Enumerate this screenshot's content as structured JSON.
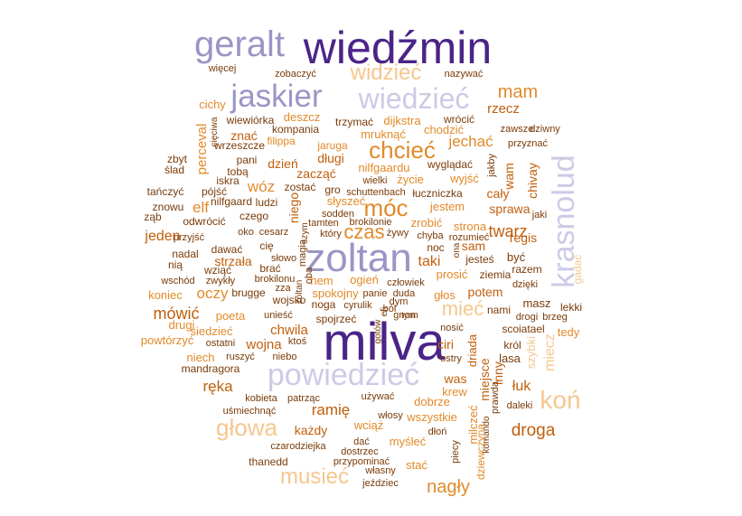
{
  "palette": {
    "dark_purple": "#4b2487",
    "mid_purple": "#9b95c6",
    "light_purple": "#cdcae6",
    "dark_orange": "#c15f0c",
    "orange": "#e28a2a",
    "light_orange": "#f5c78f",
    "brown": "#7a3b08"
  },
  "words": [
    {
      "text": "wiedźmin",
      "color": "dark_purple"
    },
    {
      "text": "milva",
      "color": "dark_purple"
    },
    {
      "text": "zoltan",
      "color": "mid_purple"
    },
    {
      "text": "geralt",
      "color": "mid_purple"
    },
    {
      "text": "jaskier",
      "color": "mid_purple"
    },
    {
      "text": "krasnolud",
      "color": "light_purple"
    },
    {
      "text": "powiedzieć",
      "color": "light_purple"
    },
    {
      "text": "wiedzieć",
      "color": "light_purple"
    },
    {
      "text": "koń",
      "color": "light_orange"
    },
    {
      "text": "widzieć",
      "color": "light_orange"
    },
    {
      "text": "głowa",
      "color": "light_orange"
    },
    {
      "text": "musieć",
      "color": "light_orange"
    },
    {
      "text": "mieć",
      "color": "light_orange"
    },
    {
      "text": "móc",
      "color": "orange"
    },
    {
      "text": "chcieć",
      "color": "orange"
    },
    {
      "text": "czas",
      "color": "orange"
    },
    {
      "text": "mam",
      "color": "orange"
    },
    {
      "text": "nagły",
      "color": "orange"
    },
    {
      "text": "droga",
      "color": "dark_orange"
    },
    {
      "text": "ręka",
      "color": "dark_orange"
    },
    {
      "text": "ramię",
      "color": "dark_orange"
    },
    {
      "text": "mówić",
      "color": "dark_orange"
    },
    {
      "text": "twarz",
      "color": "dark_orange"
    },
    {
      "text": "jeden",
      "color": "dark_orange"
    },
    {
      "text": "wóz",
      "color": "orange"
    },
    {
      "text": "oczy",
      "color": "orange"
    },
    {
      "text": "elf",
      "color": "orange"
    },
    {
      "text": "perceval",
      "color": "orange"
    },
    {
      "text": "jechać",
      "color": "orange"
    },
    {
      "text": "rzecz",
      "color": "dark_orange"
    },
    {
      "text": "wam",
      "color": "dark_orange"
    },
    {
      "text": "chivay",
      "color": "dark_orange"
    },
    {
      "text": "sprawa",
      "color": "dark_orange"
    },
    {
      "text": "regis",
      "color": "dark_orange"
    },
    {
      "text": "cały",
      "color": "dark_orange"
    },
    {
      "text": "taki",
      "color": "dark_orange"
    },
    {
      "text": "sam",
      "color": "dark_orange"
    },
    {
      "text": "potem",
      "color": "dark_orange"
    },
    {
      "text": "łuk",
      "color": "dark_orange"
    },
    {
      "text": "was",
      "color": "dark_orange"
    },
    {
      "text": "ciri",
      "color": "dark_orange"
    },
    {
      "text": "inny",
      "color": "dark_orange"
    },
    {
      "text": "miejsce",
      "color": "dark_orange"
    },
    {
      "text": "dziewczyna",
      "color": "orange"
    },
    {
      "text": "driada",
      "color": "dark_orange"
    },
    {
      "text": "chwila",
      "color": "dark_orange"
    },
    {
      "text": "wojna",
      "color": "dark_orange"
    },
    {
      "text": "strzała",
      "color": "dark_orange"
    },
    {
      "text": "każdy",
      "color": "dark_orange"
    },
    {
      "text": "dzień",
      "color": "dark_orange"
    },
    {
      "text": "długi",
      "color": "dark_orange"
    },
    {
      "text": "zacząć",
      "color": "dark_orange"
    },
    {
      "text": "znać",
      "color": "dark_orange"
    },
    {
      "text": "niego",
      "color": "dark_orange"
    },
    {
      "text": "miecz",
      "color": "light_orange"
    },
    {
      "text": "szybki",
      "color": "light_orange"
    },
    {
      "text": "tedy",
      "color": "orange"
    },
    {
      "text": "krew",
      "color": "orange"
    },
    {
      "text": "dobrze",
      "color": "orange"
    },
    {
      "text": "milczeć",
      "color": "orange"
    },
    {
      "text": "wszystkie",
      "color": "orange"
    },
    {
      "text": "myśleć",
      "color": "orange"
    },
    {
      "text": "wciąż",
      "color": "orange"
    },
    {
      "text": "stać",
      "color": "orange"
    },
    {
      "text": "poeta",
      "color": "orange"
    },
    {
      "text": "prosić",
      "color": "orange"
    },
    {
      "text": "głos",
      "color": "orange"
    },
    {
      "text": "ogień",
      "color": "orange"
    },
    {
      "text": "hem",
      "color": "orange"
    },
    {
      "text": "spokojny",
      "color": "orange"
    },
    {
      "text": "koniec",
      "color": "orange"
    },
    {
      "text": "drugi",
      "color": "orange"
    },
    {
      "text": "niech",
      "color": "orange"
    },
    {
      "text": "siedzieć",
      "color": "orange"
    },
    {
      "text": "powtórzyć",
      "color": "orange"
    },
    {
      "text": "mandragora",
      "color": "brown"
    },
    {
      "text": "jestem",
      "color": "orange"
    },
    {
      "text": "zrobić",
      "color": "orange"
    },
    {
      "text": "strona",
      "color": "orange"
    },
    {
      "text": "wyjść",
      "color": "orange"
    },
    {
      "text": "chodzić",
      "color": "orange"
    },
    {
      "text": "dijkstra",
      "color": "orange"
    },
    {
      "text": "nilfgaardu",
      "color": "orange"
    },
    {
      "text": "życie",
      "color": "orange"
    },
    {
      "text": "słyszeć",
      "color": "orange"
    },
    {
      "text": "mruknąć",
      "color": "orange"
    },
    {
      "text": "deszcz",
      "color": "orange"
    },
    {
      "text": "cichy",
      "color": "orange"
    },
    {
      "text": "filippa",
      "color": "orange"
    },
    {
      "text": "jaruga",
      "color": "orange"
    },
    {
      "text": "kompania",
      "color": "brown"
    },
    {
      "text": "wiewiórka",
      "color": "brown"
    },
    {
      "text": "trzymać",
      "color": "brown"
    },
    {
      "text": "wrócić",
      "color": "brown"
    },
    {
      "text": "zawsze",
      "color": "brown"
    },
    {
      "text": "dziwny",
      "color": "brown"
    },
    {
      "text": "przyznać",
      "color": "brown"
    },
    {
      "text": "więcej",
      "color": "brown"
    },
    {
      "text": "zobaczyć",
      "color": "brown"
    },
    {
      "text": "nazywać",
      "color": "brown"
    },
    {
      "text": "wyglądać",
      "color": "brown"
    },
    {
      "text": "łuczniczka",
      "color": "brown"
    },
    {
      "text": "wielki",
      "color": "brown"
    },
    {
      "text": "schuttenbach",
      "color": "brown"
    },
    {
      "text": "gro",
      "color": "brown"
    },
    {
      "text": "zostać",
      "color": "brown"
    },
    {
      "text": "ludzi",
      "color": "brown"
    },
    {
      "text": "nilfgaard",
      "color": "brown"
    },
    {
      "text": "pójść",
      "color": "brown"
    },
    {
      "text": "iskra",
      "color": "brown"
    },
    {
      "text": "tobą",
      "color": "brown"
    },
    {
      "text": "pani",
      "color": "brown"
    },
    {
      "text": "zbyt",
      "color": "brown"
    },
    {
      "text": "ślad",
      "color": "brown"
    },
    {
      "text": "tańczyć",
      "color": "brown"
    },
    {
      "text": "znowu",
      "color": "brown"
    },
    {
      "text": "ząb",
      "color": "brown"
    },
    {
      "text": "odwrócić",
      "color": "brown"
    },
    {
      "text": "czego",
      "color": "brown"
    },
    {
      "text": "przyjść",
      "color": "brown"
    },
    {
      "text": "oko",
      "color": "brown"
    },
    {
      "text": "cesarz",
      "color": "brown"
    },
    {
      "text": "tamten",
      "color": "brown"
    },
    {
      "text": "brokilonie",
      "color": "brown"
    },
    {
      "text": "sodden",
      "color": "brown"
    },
    {
      "text": "który",
      "color": "brown"
    },
    {
      "text": "żywy",
      "color": "brown"
    },
    {
      "text": "chyba",
      "color": "brown"
    },
    {
      "text": "rozumieć",
      "color": "brown"
    },
    {
      "text": "noc",
      "color": "brown"
    },
    {
      "text": "jesteś",
      "color": "brown"
    },
    {
      "text": "ziemia",
      "color": "brown"
    },
    {
      "text": "dzięki",
      "color": "brown"
    },
    {
      "text": "razem",
      "color": "brown"
    },
    {
      "text": "być",
      "color": "brown"
    },
    {
      "text": "jaki",
      "color": "brown"
    },
    {
      "text": "jakby",
      "color": "brown"
    },
    {
      "text": "nadal",
      "color": "brown"
    },
    {
      "text": "dawać",
      "color": "brown"
    },
    {
      "text": "nią",
      "color": "brown"
    },
    {
      "text": "wziąć",
      "color": "brown"
    },
    {
      "text": "wschód",
      "color": "brown"
    },
    {
      "text": "zwykły",
      "color": "brown"
    },
    {
      "text": "cię",
      "color": "brown"
    },
    {
      "text": "słowo",
      "color": "brown"
    },
    {
      "text": "brać",
      "color": "brown"
    },
    {
      "text": "brokilonu",
      "color": "brown"
    },
    {
      "text": "brugge",
      "color": "brown"
    },
    {
      "text": "zza",
      "color": "brown"
    },
    {
      "text": "wojsko",
      "color": "brown"
    },
    {
      "text": "noga",
      "color": "brown"
    },
    {
      "text": "cyrulik",
      "color": "brown"
    },
    {
      "text": "panie",
      "color": "brown"
    },
    {
      "text": "duda",
      "color": "brown"
    },
    {
      "text": "dym",
      "color": "brown"
    },
    {
      "text": "ból",
      "color": "brown"
    },
    {
      "text": "człowiek",
      "color": "brown"
    },
    {
      "text": "gnom",
      "color": "brown"
    },
    {
      "text": "unieść",
      "color": "brown"
    },
    {
      "text": "spojrzeć",
      "color": "brown"
    },
    {
      "text": "ostatni",
      "color": "brown"
    },
    {
      "text": "ktoś",
      "color": "brown"
    },
    {
      "text": "niebo",
      "color": "brown"
    },
    {
      "text": "ruszyć",
      "color": "brown"
    },
    {
      "text": "nosić",
      "color": "brown"
    },
    {
      "text": "ostry",
      "color": "brown"
    },
    {
      "text": "lasa",
      "color": "brown"
    },
    {
      "text": "król",
      "color": "brown"
    },
    {
      "text": "nami",
      "color": "brown"
    },
    {
      "text": "drogi",
      "color": "brown"
    },
    {
      "text": "brzeg",
      "color": "brown"
    },
    {
      "text": "scoiatael",
      "color": "brown"
    },
    {
      "text": "masz",
      "color": "brown"
    },
    {
      "text": "lekki",
      "color": "brown"
    },
    {
      "text": "kobieta",
      "color": "brown"
    },
    {
      "text": "patrząc",
      "color": "brown"
    },
    {
      "text": "używać",
      "color": "brown"
    },
    {
      "text": "uśmiechnąć",
      "color": "brown"
    },
    {
      "text": "włosy",
      "color": "brown"
    },
    {
      "text": "dłoń",
      "color": "brown"
    },
    {
      "text": "dać",
      "color": "brown"
    },
    {
      "text": "czarodziejka",
      "color": "brown"
    },
    {
      "text": "dostrzec",
      "color": "brown"
    },
    {
      "text": "przypominać",
      "color": "brown"
    },
    {
      "text": "thanedd",
      "color": "brown"
    },
    {
      "text": "własny",
      "color": "brown"
    },
    {
      "text": "jeździec",
      "color": "brown"
    },
    {
      "text": "piecy",
      "color": "brown"
    },
    {
      "text": "prawda",
      "color": "brown"
    },
    {
      "text": "komando",
      "color": "brown"
    },
    {
      "text": "daleki",
      "color": "brown"
    },
    {
      "text": "gadać",
      "color": "light_orange"
    },
    {
      "text": "cięciwa",
      "color": "brown"
    },
    {
      "text": "wrzeszcze",
      "color": "brown"
    },
    {
      "text": "magia",
      "color": "brown"
    },
    {
      "text": "szym",
      "color": "brown"
    },
    {
      "text": "oba",
      "color": "brown"
    },
    {
      "text": "efi",
      "color": "brown"
    },
    {
      "text": "tym",
      "color": "brown"
    },
    {
      "text": "ona",
      "color": "brown"
    },
    {
      "text": "zoltan",
      "color": "brown"
    },
    {
      "text": "gotów",
      "color": "brown"
    }
  ]
}
